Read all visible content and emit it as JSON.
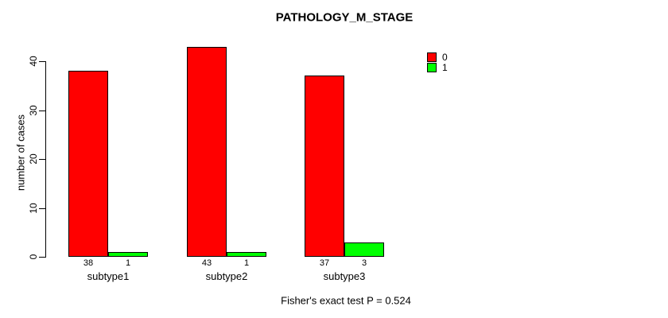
{
  "chart_data": {
    "type": "bar",
    "title": "PATHOLOGY_M_STAGE",
    "categories": [
      "subtype1",
      "subtype2",
      "subtype3"
    ],
    "series": [
      {
        "name": "0",
        "color": "#FF0000",
        "values": [
          38,
          43,
          37
        ]
      },
      {
        "name": "1",
        "color": "#00FF00",
        "values": [
          1,
          1,
          3
        ]
      }
    ],
    "bar_count_labels": [
      {
        "category": "subtype1",
        "labels": [
          "38",
          "1"
        ]
      },
      {
        "category": "subtype2",
        "labels": [
          "43",
          "1"
        ]
      },
      {
        "category": "subtype3",
        "labels": [
          "37",
          "3"
        ]
      }
    ],
    "xlabel": "",
    "ylabel": "number of cases",
    "yticks": [
      0,
      10,
      20,
      30,
      40
    ],
    "ylim": [
      0,
      43
    ],
    "grid": false,
    "bar_border_color": "#000000",
    "background_color": "#FFFFFF",
    "legend_position": "top-right",
    "legend": [
      {
        "label": "0",
        "color": "#FF0000"
      },
      {
        "label": "1",
        "color": "#00FF00"
      }
    ],
    "annotation": "Fisher's exact test P = 0.524"
  }
}
